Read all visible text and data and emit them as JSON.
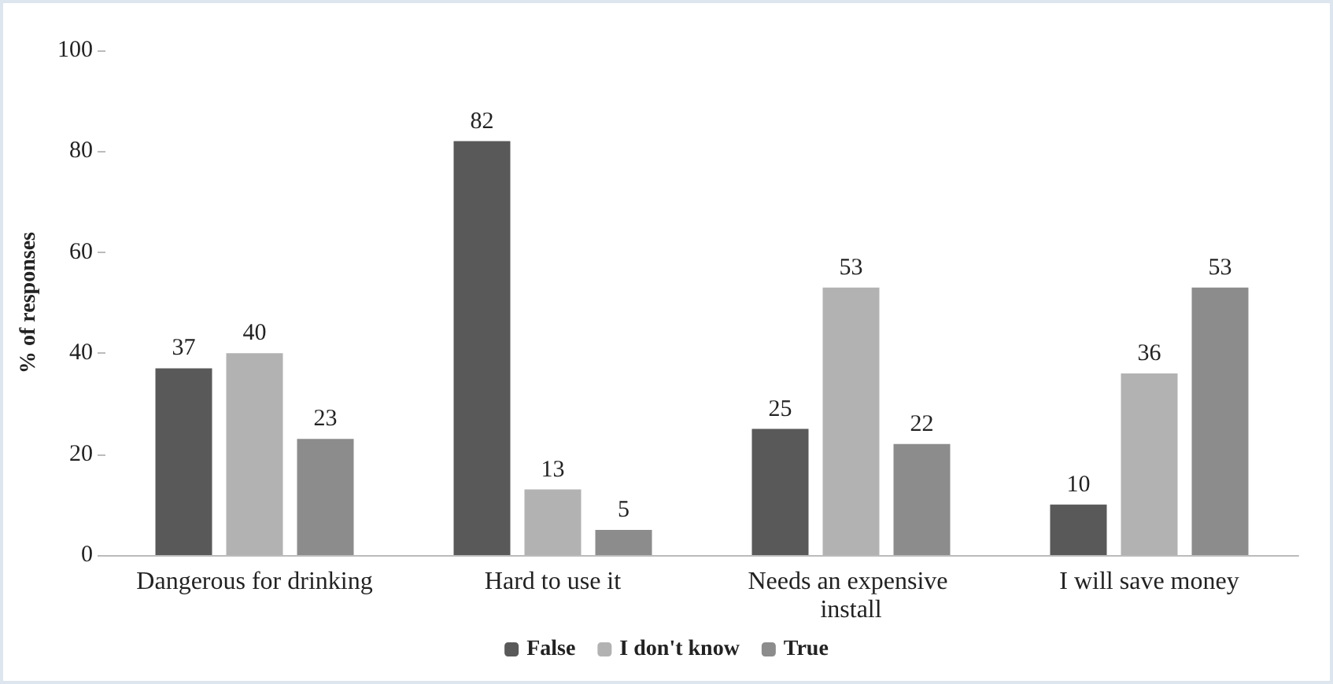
{
  "chart_data": {
    "type": "bar",
    "ylabel": "% of responses",
    "categories": [
      "Dangerous for drinking",
      "Hard to use it",
      "Needs an expensive install",
      "I will save money"
    ],
    "series": [
      {
        "name": "False",
        "color": "#595959",
        "values": [
          37,
          82,
          25,
          10
        ]
      },
      {
        "name": "I don't know",
        "color": "#b2b2b2",
        "values": [
          40,
          13,
          53,
          36
        ]
      },
      {
        "name": "True",
        "color": "#8c8c8c",
        "values": [
          23,
          5,
          22,
          53
        ]
      }
    ],
    "ylim": [
      0,
      100
    ],
    "yticks": [
      0,
      20,
      40,
      60,
      80,
      100
    ],
    "grid": false,
    "legend": "bottom",
    "data_labels": true
  }
}
